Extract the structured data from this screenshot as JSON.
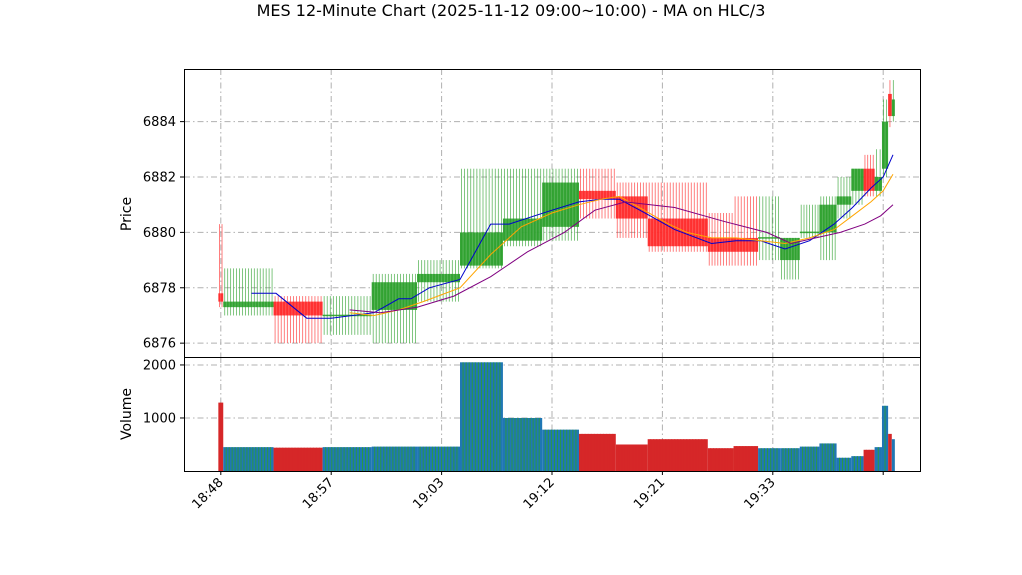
{
  "chart_data": {
    "title": "MES 12-Minute Chart (2025-11-12 09:00~10:00) - MA on HLC/3",
    "type": "candlestick",
    "price_panel": {
      "ylabel": "Price",
      "ylim": [
        6875.5,
        6885.9
      ],
      "yticks": [
        6876,
        6878,
        6880,
        6882,
        6884
      ],
      "grid": true
    },
    "volume_panel": {
      "ylabel": "Volume",
      "ylim": [
        0,
        2150
      ],
      "yticks": [
        1000,
        2000
      ],
      "grid": true
    },
    "x_axis": {
      "ticks": [
        {
          "label": "18:48",
          "x": 0
        },
        {
          "label": "18:57",
          "x": 9
        },
        {
          "label": "19:03",
          "x": 18
        },
        {
          "label": "19:12",
          "x": 27
        },
        {
          "label": "19:21",
          "x": 36
        },
        {
          "label": "19:33",
          "x": 45
        },
        {
          "label": "",
          "x": 54
        }
      ],
      "xlim": [
        -3,
        57
      ]
    },
    "colors": {
      "up": "#2ca02c",
      "down": "#ff2a2a",
      "vol_up": "#1f77b4",
      "vol_down": "#d62728",
      "ma_fast": "#0000cc",
      "ma_mid": "#ffa500",
      "ma_slow": "#800080"
    },
    "segments": [
      {
        "x0": -0.2,
        "x1": 0.2,
        "o": 6877.8,
        "h": 6880.3,
        "l": 6877.3,
        "c": 6877.5,
        "vol": 1290
      },
      {
        "x0": 0.2,
        "x1": 4.3,
        "o": 6877.3,
        "h": 6878.7,
        "l": 6877.0,
        "c": 6877.5,
        "vol": 450
      },
      {
        "x0": 4.3,
        "x1": 8.3,
        "o": 6877.5,
        "h": 6877.7,
        "l": 6876.0,
        "c": 6877.0,
        "vol": 440
      },
      {
        "x0": 8.3,
        "x1": 12.3,
        "o": 6877.0,
        "h": 6877.7,
        "l": 6876.3,
        "c": 6877.0,
        "vol": 450
      },
      {
        "x0": 12.3,
        "x1": 16.0,
        "o": 6877.2,
        "h": 6878.5,
        "l": 6876.0,
        "c": 6878.2,
        "vol": 460
      },
      {
        "x0": 16.0,
        "x1": 19.5,
        "o": 6878.2,
        "h": 6879.0,
        "l": 6877.5,
        "c": 6878.5,
        "vol": 460
      },
      {
        "x0": 19.5,
        "x1": 23.0,
        "o": 6878.8,
        "h": 6882.3,
        "l": 6878.7,
        "c": 6880.0,
        "vol": 2050
      },
      {
        "x0": 23.0,
        "x1": 26.2,
        "o": 6879.7,
        "h": 6882.3,
        "l": 6879.5,
        "c": 6880.5,
        "vol": 1000
      },
      {
        "x0": 26.2,
        "x1": 29.2,
        "o": 6880.2,
        "h": 6882.3,
        "l": 6879.7,
        "c": 6881.8,
        "vol": 780
      },
      {
        "x0": 29.2,
        "x1": 32.2,
        "o": 6881.5,
        "h": 6882.3,
        "l": 6880.5,
        "c": 6881.2,
        "vol": 700
      },
      {
        "x0": 32.2,
        "x1": 34.8,
        "o": 6881.3,
        "h": 6881.8,
        "l": 6879.8,
        "c": 6880.5,
        "vol": 500
      },
      {
        "x0": 34.8,
        "x1": 39.7,
        "o": 6880.5,
        "h": 6881.8,
        "l": 6879.3,
        "c": 6879.5,
        "vol": 600
      },
      {
        "x0": 39.7,
        "x1": 41.8,
        "o": 6879.8,
        "h": 6880.7,
        "l": 6878.8,
        "c": 6879.3,
        "vol": 430
      },
      {
        "x0": 41.8,
        "x1": 43.8,
        "o": 6879.8,
        "h": 6881.3,
        "l": 6878.8,
        "c": 6879.3,
        "vol": 470
      },
      {
        "x0": 43.8,
        "x1": 45.6,
        "o": 6879.8,
        "h": 6881.3,
        "l": 6879.0,
        "c": 6879.8,
        "vol": 430
      },
      {
        "x0": 45.6,
        "x1": 47.2,
        "o": 6879.0,
        "h": 6879.8,
        "l": 6878.3,
        "c": 6879.8,
        "vol": 430
      },
      {
        "x0": 47.2,
        "x1": 48.8,
        "o": 6880.0,
        "h": 6881.0,
        "l": 6879.8,
        "c": 6880.0,
        "vol": 460
      },
      {
        "x0": 48.8,
        "x1": 50.2,
        "o": 6880.0,
        "h": 6881.3,
        "l": 6879.0,
        "c": 6881.0,
        "vol": 520
      },
      {
        "x0": 50.2,
        "x1": 51.4,
        "o": 6881.0,
        "h": 6882.0,
        "l": 6880.5,
        "c": 6881.3,
        "vol": 250
      },
      {
        "x0": 51.4,
        "x1": 52.4,
        "o": 6881.5,
        "h": 6882.3,
        "l": 6881.0,
        "c": 6882.3,
        "vol": 280
      },
      {
        "x0": 52.4,
        "x1": 53.3,
        "o": 6882.3,
        "h": 6882.8,
        "l": 6881.3,
        "c": 6881.5,
        "vol": 400
      },
      {
        "x0": 53.3,
        "x1": 53.9,
        "o": 6881.5,
        "h": 6883.0,
        "l": 6881.3,
        "c": 6882.0,
        "vol": 450
      },
      {
        "x0": 53.9,
        "x1": 54.4,
        "o": 6882.3,
        "h": 6884.8,
        "l": 6882.0,
        "c": 6884.0,
        "vol": 1230
      },
      {
        "x0": 54.4,
        "x1": 54.7,
        "o": 6885.0,
        "h": 6885.5,
        "l": 6883.8,
        "c": 6884.2,
        "vol": 700
      },
      {
        "x0": 54.7,
        "x1": 54.95,
        "o": 6884.2,
        "h": 6885.5,
        "l": 6884.0,
        "c": 6884.8,
        "vol": 600
      }
    ],
    "moving_averages": [
      {
        "name": "",
        "color_key": "ma_fast",
        "points": [
          [
            2.5,
            6877.8
          ],
          [
            4.5,
            6877.8
          ],
          [
            7.0,
            6876.9
          ],
          [
            9.0,
            6876.9
          ],
          [
            12.5,
            6877.1
          ],
          [
            14.5,
            6877.6
          ],
          [
            15.5,
            6877.6
          ],
          [
            17.0,
            6878.0
          ],
          [
            19.5,
            6878.3
          ],
          [
            22.0,
            6880.3
          ],
          [
            23.5,
            6880.3
          ],
          [
            27.0,
            6880.8
          ],
          [
            29.2,
            6881.1
          ],
          [
            31.0,
            6881.2
          ],
          [
            32.5,
            6881.2
          ],
          [
            35.0,
            6880.6
          ],
          [
            37.0,
            6880.1
          ],
          [
            40.0,
            6879.6
          ],
          [
            42.0,
            6879.7
          ],
          [
            44.0,
            6879.7
          ],
          [
            46.0,
            6879.4
          ],
          [
            48.0,
            6879.7
          ],
          [
            50.0,
            6880.3
          ],
          [
            51.5,
            6880.9
          ],
          [
            53.0,
            6881.6
          ],
          [
            54.0,
            6882.0
          ],
          [
            54.8,
            6882.8
          ]
        ]
      },
      {
        "name": "",
        "color_key": "ma_mid",
        "points": [
          [
            10.5,
            6877.1
          ],
          [
            12.5,
            6877.0
          ],
          [
            14.5,
            6877.2
          ],
          [
            16.5,
            6877.5
          ],
          [
            19.5,
            6878.0
          ],
          [
            22.0,
            6879.2
          ],
          [
            24.5,
            6880.2
          ],
          [
            27.0,
            6880.7
          ],
          [
            29.2,
            6881.0
          ],
          [
            31.0,
            6881.2
          ],
          [
            32.5,
            6881.3
          ],
          [
            34.5,
            6880.8
          ],
          [
            36.5,
            6880.3
          ],
          [
            38.0,
            6880.0
          ],
          [
            40.0,
            6879.8
          ],
          [
            42.0,
            6879.8
          ],
          [
            44.0,
            6879.7
          ],
          [
            46.0,
            6879.6
          ],
          [
            48.0,
            6879.8
          ],
          [
            50.0,
            6880.1
          ],
          [
            51.5,
            6880.6
          ],
          [
            53.0,
            6881.1
          ],
          [
            54.0,
            6881.5
          ],
          [
            54.8,
            6882.1
          ]
        ]
      },
      {
        "name": "",
        "color_key": "ma_slow",
        "points": [
          [
            10.5,
            6877.2
          ],
          [
            13.0,
            6877.1
          ],
          [
            16.0,
            6877.3
          ],
          [
            19.0,
            6877.7
          ],
          [
            22.0,
            6878.4
          ],
          [
            25.0,
            6879.3
          ],
          [
            28.0,
            6880.0
          ],
          [
            30.5,
            6880.8
          ],
          [
            33.0,
            6881.1
          ],
          [
            37.0,
            6880.9
          ],
          [
            41.0,
            6880.4
          ],
          [
            44.5,
            6880.0
          ],
          [
            46.5,
            6879.6
          ],
          [
            48.5,
            6879.8
          ],
          [
            50.5,
            6880.0
          ],
          [
            52.5,
            6880.3
          ],
          [
            53.8,
            6880.6
          ],
          [
            54.8,
            6881.0
          ]
        ]
      }
    ]
  }
}
